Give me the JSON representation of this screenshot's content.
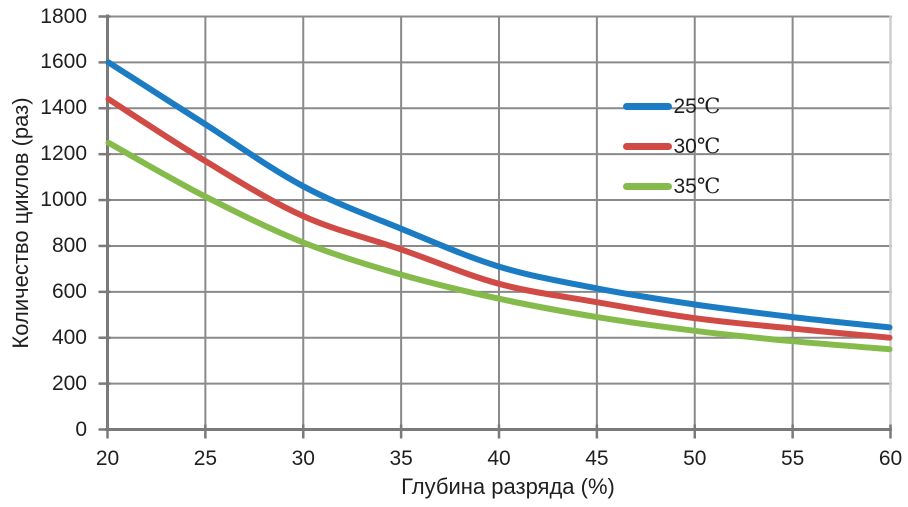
{
  "chart_data": {
    "type": "line",
    "title": "",
    "xlabel": "Глубина разряда (%)",
    "ylabel": "Количество циклов (раз)",
    "x": [
      20,
      25,
      30,
      35,
      40,
      45,
      50,
      55,
      60
    ],
    "xlim": [
      20,
      60
    ],
    "ylim": [
      0,
      1800
    ],
    "x_ticks": [
      20,
      25,
      30,
      35,
      40,
      45,
      50,
      55,
      60
    ],
    "y_ticks": [
      0,
      200,
      400,
      600,
      800,
      1000,
      1200,
      1400,
      1600,
      1800
    ],
    "grid": true,
    "smoothed_lines": true,
    "legend_position": "inside-upper-right",
    "series": [
      {
        "name": "25℃",
        "color": "#1B7CC4",
        "values": [
          1600,
          1330,
          1060,
          875,
          710,
          615,
          545,
          490,
          445
        ]
      },
      {
        "name": "30℃",
        "color": "#D14B46",
        "values": [
          1440,
          1170,
          930,
          785,
          635,
          555,
          485,
          440,
          400
        ]
      },
      {
        "name": "35℃",
        "color": "#85BB4A",
        "values": [
          1250,
          1015,
          815,
          675,
          570,
          490,
          430,
          385,
          350
        ]
      }
    ],
    "colors": {
      "gridline": "#8A8A8A",
      "axis": "#7A7A7A",
      "plot_border_right": "#CDCDCD",
      "text": "#1F1F1F",
      "background": "#FFFFFF"
    }
  }
}
